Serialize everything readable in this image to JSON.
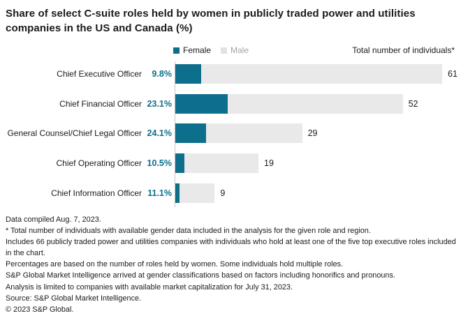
{
  "title": "Share of select C-suite roles held by women in publicly traded power and utilities companies in the US and Canada (%)",
  "legend": {
    "items": [
      {
        "label": "Female",
        "color": "#0e6f8c",
        "text_color": "#1a1a1a"
      },
      {
        "label": "Male",
        "color": "#e2e2e2",
        "text_color": "#a3a3a3"
      }
    ],
    "right_label": "Total number of individuals*"
  },
  "chart_data": {
    "type": "bar",
    "orientation": "horizontal",
    "stacked": true,
    "title": "Share of select C-suite roles held by women in publicly traded power and utilities companies in the US and Canada (%)",
    "categories": [
      "Chief Executive Officer",
      "Chief Financial Officer",
      "General Counsel/Chief Legal Officer",
      "Chief Operating Officer",
      "Chief Information Officer"
    ],
    "series": [
      {
        "name": "Female",
        "values": [
          9.8,
          23.1,
          24.1,
          10.5,
          11.1
        ]
      },
      {
        "name": "Male",
        "values": [
          90.2,
          76.9,
          75.9,
          89.5,
          88.9
        ]
      }
    ],
    "pct_labels": [
      "9.8%",
      "23.1%",
      "24.1%",
      "10.5%",
      "11.1%"
    ],
    "totals": [
      61,
      52,
      29,
      19,
      9
    ],
    "max_total": 61,
    "bar_length_note": "bar pixel length proportional to total individuals",
    "colors": {
      "female": "#0e6f8c",
      "male": "#e9e9e9"
    },
    "legend_position": "top",
    "grid": false
  },
  "footnotes": [
    "Data compiled Aug. 7, 2023.",
    "* Total number of individuals with available gender data included in the analysis for the given role and region.",
    "Includes 66 publicly traded power and utilities companies with individuals who hold at least one of the five top executive roles included in the chart.",
    "Percentages are based on the number of roles held by women. Some individuals hold multiple roles.",
    "S&P Global Market Intelligence arrived at gender classifications based on factors including honorifics and pronouns.",
    "Analysis is limited to companies with available market capitalization for July 31, 2023.",
    "Source: S&P Global Market Intelligence.",
    "© 2023 S&P Global."
  ]
}
